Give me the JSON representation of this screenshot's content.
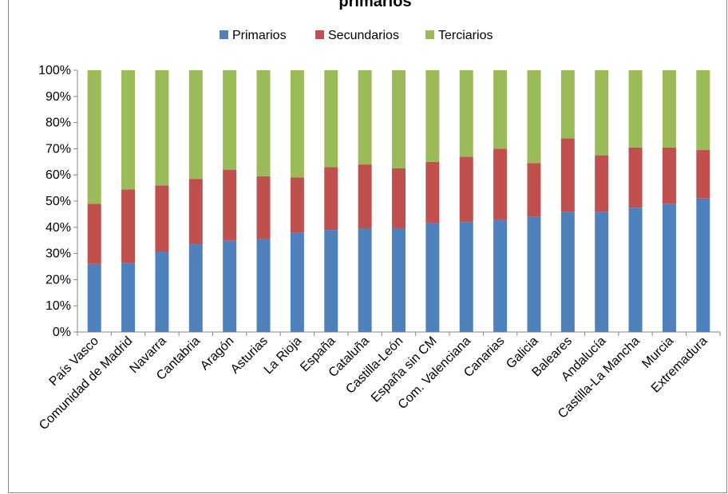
{
  "chart_data": {
    "type": "bar",
    "stacked": "percent",
    "title": "primarios",
    "categories": [
      "País Vasco",
      "Comunidad de Madrid",
      "Navarra",
      "Cantabria",
      "Aragón",
      "Asturias",
      "La Rioja",
      "España",
      "Cataluña",
      "Castilla-León",
      "España sin CM",
      "Com. Valenciana",
      "Canarias",
      "Galicia",
      "Baleares",
      "Andalucía",
      "Castilla-La Mancha",
      "Murcia",
      "Extremadura"
    ],
    "series": [
      {
        "name": "Primarios",
        "color": "#4F81BD",
        "values": [
          26,
          26.5,
          30.5,
          33.5,
          35,
          35.5,
          38,
          39,
          39.5,
          39.5,
          41.5,
          42,
          43,
          44,
          46,
          46,
          47.5,
          49,
          51
        ]
      },
      {
        "name": "Secundarios",
        "color": "#C0504D",
        "values": [
          23,
          28,
          25.5,
          25,
          27,
          24,
          21,
          24,
          24.5,
          23,
          23.5,
          25,
          27,
          20.5,
          28,
          21.5,
          23,
          21.5,
          18.5
        ]
      },
      {
        "name": "Terciarios",
        "color": "#9BBB59",
        "values": [
          51,
          45.5,
          44,
          41.5,
          38,
          40.5,
          41,
          37,
          36,
          37.5,
          35,
          33,
          30,
          35.5,
          26,
          32.5,
          29.5,
          29.5,
          30.5
        ]
      }
    ],
    "y_ticks": [
      "0%",
      "10%",
      "20%",
      "30%",
      "40%",
      "50%",
      "60%",
      "70%",
      "80%",
      "90%",
      "100%"
    ],
    "ylim": [
      0,
      100
    ],
    "grid": false,
    "legend_position": "top"
  }
}
